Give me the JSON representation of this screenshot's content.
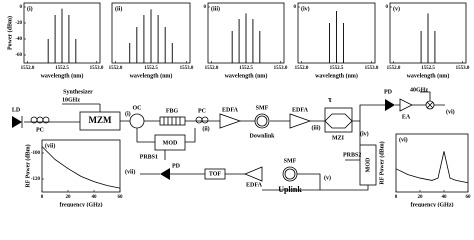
{
  "chart_data": [
    {
      "type": "stem",
      "title": "(i)",
      "y_label": "Power (dBm)",
      "x_label": "wavelength (nm)",
      "x": [
        1552.3,
        1552.4,
        1552.5,
        1552.6,
        1552.7
      ],
      "values": [
        -40,
        -10,
        -2,
        -10,
        -40
      ],
      "xlim": [
        1551.95,
        1553.05
      ],
      "ylim": [
        -70,
        5
      ],
      "xticks": [
        {
          "value": 1552,
          "label": "1552.0"
        },
        1552.5,
        {
          "value": 1553,
          "label": "1553.0"
        }
      ],
      "yticks": [
        0,
        -20,
        -40,
        -60
      ],
      "color": "#000000"
    },
    {
      "type": "stem",
      "title": "(ii)",
      "x_label": "wavelength (nm)",
      "x": [
        1552.2,
        1552.3,
        1552.4,
        1552.5,
        1552.6,
        1552.7,
        1552.8
      ],
      "values": [
        -45,
        -25,
        -10,
        -3,
        -10,
        -25,
        -45
      ],
      "xlim": [
        1551.95,
        1553.05
      ],
      "ylim": [
        -70,
        5
      ],
      "xticks": [
        {
          "value": 1552,
          "label": "1552.0"
        },
        1552.5,
        {
          "value": 1553,
          "label": "1553.0"
        }
      ],
      "yticks": [],
      "color": "#000000"
    },
    {
      "type": "stem",
      "title": "(iii)",
      "x_label": "wavelength (nm)",
      "x": [
        1552.3,
        1552.4,
        1552.5,
        1552.6,
        1552.7
      ],
      "values": [
        -30,
        -15,
        -8,
        -15,
        -30
      ],
      "xlim": [
        1551.95,
        1553.05
      ],
      "ylim": [
        -70,
        5
      ],
      "xticks": [
        {
          "value": 1552,
          "label": "1552.0"
        },
        1552.5,
        {
          "value": 1553,
          "label": "1553.0"
        }
      ],
      "yticks": [
        0
      ],
      "color": "#000000"
    },
    {
      "type": "stem",
      "title": "(iv)",
      "x_label": "wavelength (nm)",
      "x": [
        1552.4,
        1552.5,
        1552.6
      ],
      "values": [
        -20,
        -5,
        -20
      ],
      "xlim": [
        1551.95,
        1553.05
      ],
      "ylim": [
        -70,
        5
      ],
      "xticks": [
        {
          "value": 1552,
          "label": "1552.0"
        },
        1552.5,
        {
          "value": 1553,
          "label": "1553.0"
        }
      ],
      "yticks": [
        0
      ],
      "color": "#000000"
    },
    {
      "type": "stem",
      "title": "(v)",
      "x_label": "wavelength (nm)",
      "x": [
        1552.4,
        1552.5,
        1552.6
      ],
      "values": [
        -30,
        -8,
        -30
      ],
      "xlim": [
        1551.95,
        1553.05
      ],
      "ylim": [
        -70,
        5
      ],
      "xticks": [
        {
          "value": 1552,
          "label": "1552.0"
        },
        1552.5,
        {
          "value": 1553,
          "label": "1553.0"
        }
      ],
      "yticks": [
        0
      ],
      "color": "#000000"
    },
    {
      "type": "line",
      "title": "(vii)",
      "y_label": "RF Power (dBm)",
      "x_label": "frequency (GHz)",
      "x": [
        0,
        10,
        20,
        30,
        40,
        50,
        60
      ],
      "values": [
        -95,
        -105,
        -112,
        -118,
        -122,
        -125,
        -127
      ],
      "xlim": [
        0,
        60
      ],
      "ylim": [
        -130,
        -90
      ],
      "xticks": [
        0,
        20,
        40,
        60
      ],
      "yticks": [
        -100,
        -120
      ],
      "color": "#000000"
    },
    {
      "type": "line",
      "title": "(vi)",
      "y_label": "RF Power (dBm)",
      "x_label": "frequency (GHz)",
      "x": [
        0,
        10,
        20,
        30,
        35,
        40,
        45,
        50,
        60
      ],
      "values": [
        -110,
        -115,
        -118,
        -120,
        -118,
        -95,
        -118,
        -120,
        -122
      ],
      "xlim": [
        0,
        60
      ],
      "ylim": [
        -130,
        -80
      ],
      "xticks": [
        0,
        20,
        40,
        60
      ],
      "yticks": [],
      "color": "#000000"
    }
  ],
  "diagram": {
    "labels": [
      "Synthesizer",
      "10GHz",
      "LD",
      "PC",
      "MZM",
      "(i)",
      "OC",
      "FBG",
      "PC",
      "(ii)",
      "EDFA",
      "SMF",
      "Downlink",
      "EDFA",
      "τ",
      "MZI",
      "(iii)",
      "(iv)",
      "PD",
      "40GHz",
      "EA",
      "(vi)",
      "MOD",
      "PRBS1",
      "(vii)",
      "PD",
      "TOF",
      "EDFA",
      "SMF",
      "Uplink",
      "(v)",
      "PRBS2",
      "MOD"
    ]
  }
}
